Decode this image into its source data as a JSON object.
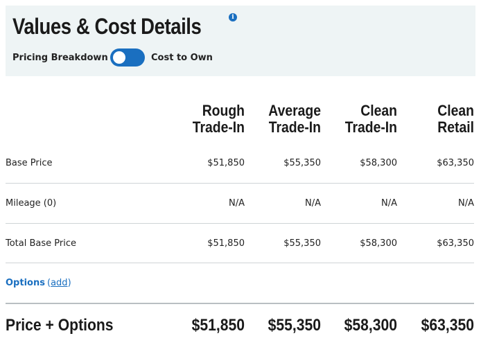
{
  "header": {
    "title": "Values & Cost Details",
    "info_icon": "i",
    "toggle_left_label": "Pricing Breakdown",
    "toggle_right_label": "Cost to Own",
    "toggle_state": "left"
  },
  "columns": [
    {
      "line1": "Rough",
      "line2": "Trade-In"
    },
    {
      "line1": "Average",
      "line2": "Trade-In"
    },
    {
      "line1": "Clean",
      "line2": "Trade-In"
    },
    {
      "line1": "Clean",
      "line2": "Retail"
    }
  ],
  "rows": [
    {
      "label": "Base Price",
      "values": [
        "$51,850",
        "$55,350",
        "$58,300",
        "$63,350"
      ]
    },
    {
      "label": "Mileage (0)",
      "values": [
        "N/A",
        "N/A",
        "N/A",
        "N/A"
      ]
    },
    {
      "label": "Total Base Price",
      "values": [
        "$51,850",
        "$55,350",
        "$58,300",
        "$63,350"
      ]
    }
  ],
  "options": {
    "label": "Options",
    "add_link": "add"
  },
  "total": {
    "label": "Price + Options",
    "values": [
      "$51,850",
      "$55,350",
      "$58,300",
      "$63,350"
    ]
  },
  "colors": {
    "accent": "#1a6fc0",
    "header_bg": "#eef4f5",
    "divider": "#cfd4d6"
  }
}
